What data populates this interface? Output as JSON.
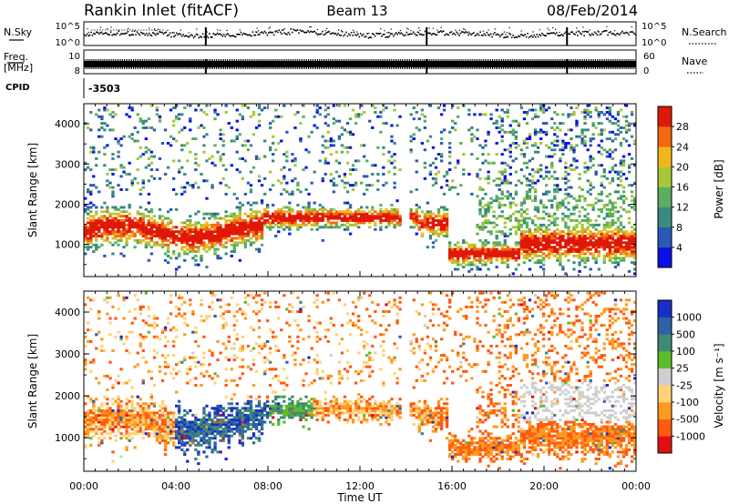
{
  "header": {
    "station": "Rankin Inlet (fitACF)",
    "beam": "Beam 13",
    "date": "08/Feb/2014"
  },
  "chart_data": [
    {
      "type": "line",
      "panel": "noise",
      "left_label": "N.Sky",
      "right_label": "N.Search",
      "left_ticks": [
        "10^5",
        "10^0"
      ],
      "right_ticks": [
        "10^5",
        "10^0"
      ],
      "scale": "log"
    },
    {
      "type": "line",
      "panel": "frequency",
      "left_label_top": "Freq.",
      "left_label_bottom": "[MHz]",
      "right_label": "Nave",
      "left_ticks": [
        "10",
        "8"
      ],
      "right_ticks": [
        "60",
        "0"
      ]
    },
    {
      "type": "table",
      "panel": "cpid",
      "label": "CPID",
      "value": "-3503"
    },
    {
      "type": "heatmap",
      "panel": "power",
      "ylabel": "Slant Range [km]",
      "ylim": [
        200,
        4500
      ],
      "yticks": [
        "1000",
        "2000",
        "3000",
        "4000"
      ],
      "colorbar": {
        "label": "Power [dB]",
        "range": [
          0,
          32
        ],
        "ticks": [
          "4",
          "8",
          "12",
          "16",
          "20",
          "24",
          "28"
        ],
        "colors": [
          "#0a10e6",
          "#2a58b6",
          "#3a8a7e",
          "#5cae60",
          "#a6c83a",
          "#f2b61c",
          "#f26a10",
          "#e01808"
        ]
      }
    },
    {
      "type": "heatmap",
      "panel": "velocity",
      "ylabel": "Slant Range [km]",
      "ylim": [
        200,
        4500
      ],
      "yticks": [
        "1000",
        "2000",
        "3000",
        "4000"
      ],
      "colorbar": {
        "label": "Velocity [m s⁻¹]",
        "ticks": [
          "1000",
          "500",
          "100",
          "25",
          "-25",
          "-100",
          "-500",
          "-1000"
        ],
        "colors": [
          "#1a2ec8",
          "#2f62a6",
          "#3f8a72",
          "#5cbc2c",
          "#cfcfcf",
          "#ffd27a",
          "#ff9a20",
          "#ff5a10",
          "#e01010"
        ]
      }
    }
  ],
  "time_axis": {
    "label": "Time UT",
    "range_hours": [
      0,
      24
    ],
    "ticks": [
      "00:00",
      "04:00",
      "08:00",
      "12:00",
      "16:00",
      "20:00",
      "00:00"
    ]
  }
}
